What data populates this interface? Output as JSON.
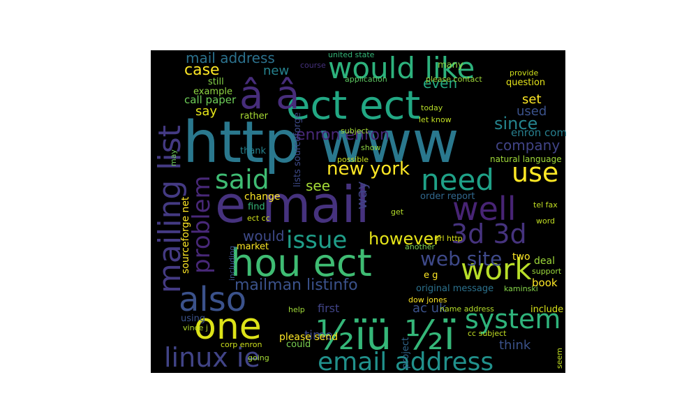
{
  "words": [
    "http www",
    "e mail",
    "ect ect",
    "â â",
    "hou ect",
    "mailing list",
    "would like",
    "½ïü ½ï",
    "one",
    "also",
    "linux ie",
    "email address",
    "system",
    "work",
    "well",
    "need",
    "use",
    "said",
    "problem",
    "3d 3d",
    "issue",
    "however",
    "web site",
    "mailman listinfo",
    "new york",
    "enron enron",
    "since",
    "company",
    "mail address",
    "case",
    "new",
    "even",
    "set",
    "used",
    "enron com",
    "say",
    "call paper",
    "example",
    "still",
    "thank",
    "rather",
    "see",
    "way",
    "lists sourceforge",
    "change",
    "find",
    "would",
    "market",
    "sourceforge net",
    "ect cc",
    "time",
    "ac uk",
    "first",
    "please send",
    "think",
    "book",
    "deal",
    "two",
    "order report",
    "tel fax",
    "natural language",
    "include",
    "using",
    "original message",
    "dow jones",
    "name address",
    "cc subject",
    "kaminski",
    "united state",
    "many",
    "question",
    "provide",
    "please contact",
    "today",
    "let know",
    "e g",
    "url http",
    "vince j",
    "corp enron",
    "could",
    "going",
    "help",
    "project",
    "seem",
    "support",
    "including",
    "may",
    "subject",
    "possible",
    "show",
    "course",
    "application",
    "another",
    "get",
    "word"
  ]
}
